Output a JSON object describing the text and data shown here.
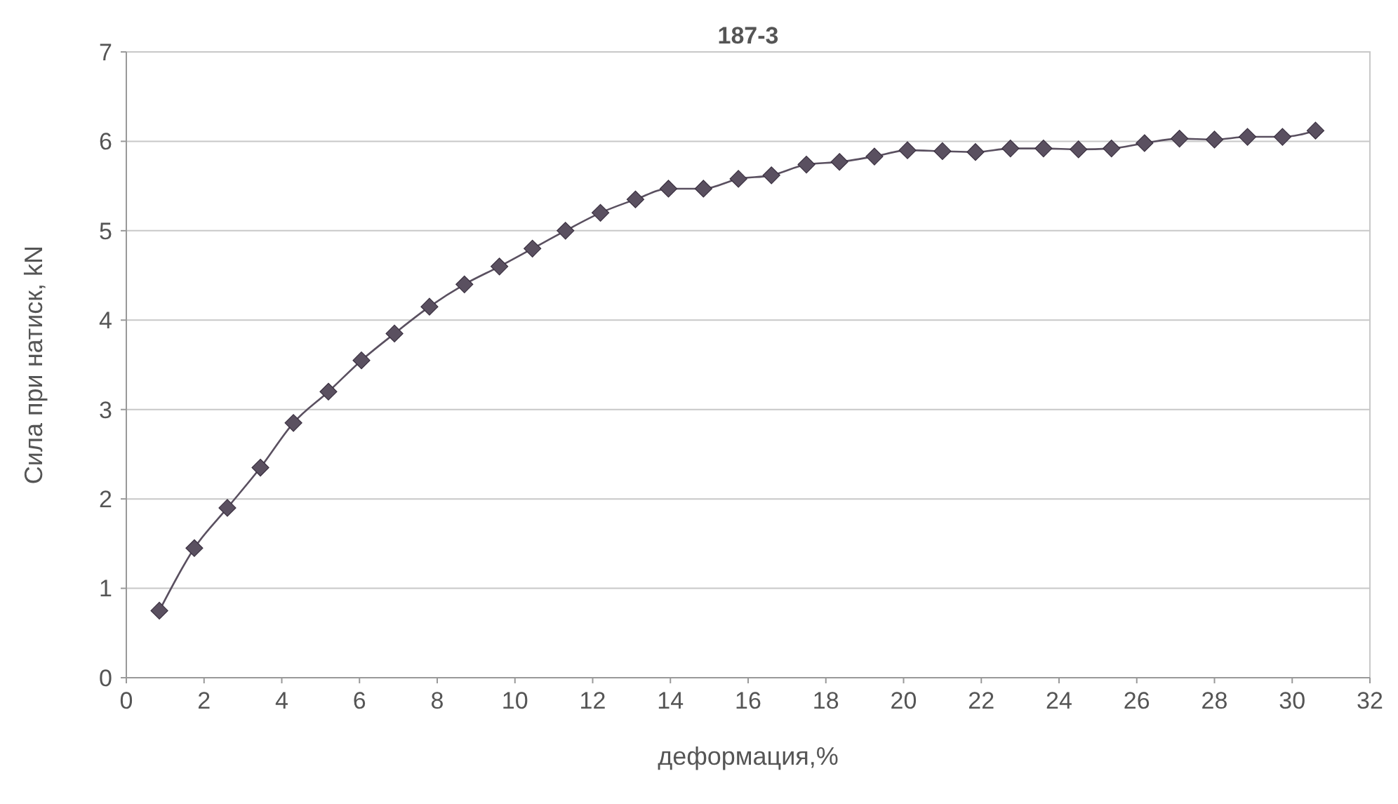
{
  "chart_data": {
    "type": "line",
    "title": "187-3",
    "xlabel": "деформация,%",
    "ylabel": "Сила при натиск, kN",
    "x": [
      0.85,
      1.75,
      2.6,
      3.45,
      4.3,
      5.2,
      6.05,
      6.9,
      7.8,
      8.7,
      9.6,
      10.45,
      11.3,
      12.2,
      13.1,
      13.95,
      14.85,
      15.75,
      16.6,
      17.5,
      18.35,
      19.25,
      20.1,
      21,
      21.85,
      22.75,
      23.6,
      24.5,
      25.35,
      26.2,
      27.1,
      28,
      28.85,
      29.75,
      30.6
    ],
    "series": [
      {
        "color": "#5a5060",
        "values": [
          0.75,
          1.45,
          1.9,
          2.35,
          2.85,
          3.2,
          3.55,
          3.85,
          4.15,
          4.4,
          4.6,
          4.8,
          5.0,
          5.2,
          5.35,
          5.47,
          5.47,
          5.58,
          5.62,
          5.74,
          5.77,
          5.83,
          5.9,
          5.89,
          5.88,
          5.92,
          5.92,
          5.91,
          5.92,
          5.98,
          6.03,
          6.02,
          6.05,
          6.05,
          6.12
        ]
      }
    ],
    "xlim": [
      0,
      32
    ],
    "xticks": [
      0,
      2,
      4,
      6,
      8,
      10,
      12,
      14,
      16,
      18,
      20,
      22,
      24,
      26,
      28,
      30,
      32
    ],
    "ylim": [
      0,
      7
    ],
    "yticks": [
      0,
      1,
      2,
      3,
      4,
      5,
      6,
      7
    ],
    "grid": "y",
    "marker": "diamond",
    "line_style": "solid"
  }
}
